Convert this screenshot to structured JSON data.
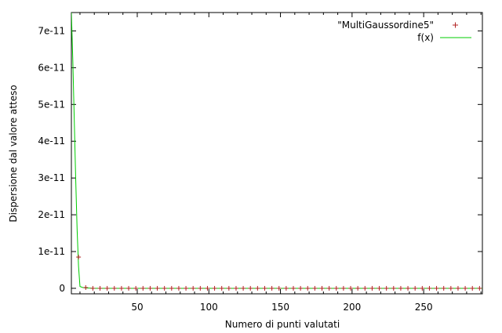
{
  "chart_data": {
    "type": "scatter",
    "title": "",
    "xlabel": "Numero di punti valutati",
    "ylabel": "Dispersione dal valore atteso",
    "xlim": [
      4,
      291
    ],
    "ylim": [
      -1.5e-12,
      7.5e-11
    ],
    "xticks": [
      50,
      100,
      150,
      200,
      250
    ],
    "yticks": [
      0,
      1e-11,
      2e-11,
      3e-11,
      4e-11,
      5e-11,
      6e-11,
      7e-11
    ],
    "ytick_labels": [
      "0",
      "1e-11",
      "2e-11",
      "3e-11",
      "4e-11",
      "5e-11",
      "6e-11",
      "7e-11"
    ],
    "xtick_labels": [
      "50",
      "100",
      "150",
      "200",
      "250"
    ],
    "grid": false,
    "legend_position": "top-right",
    "series": [
      {
        "name": "\"MultiGaussordine5\"",
        "kind": "points",
        "marker": "plus",
        "color": "#b22222",
        "x": [
          9,
          14,
          19,
          24,
          29,
          34,
          39,
          44,
          49,
          54,
          59,
          64,
          69,
          74,
          79,
          84,
          89,
          94,
          99,
          104,
          109,
          114,
          119,
          124,
          129,
          134,
          139,
          144,
          149,
          154,
          159,
          164,
          169,
          174,
          179,
          184,
          189,
          194,
          199,
          204,
          209,
          214,
          219,
          224,
          229,
          234,
          239,
          244,
          249,
          254,
          259,
          264,
          269,
          274,
          279,
          284,
          289
        ],
        "y": [
          8.5e-12,
          2e-13,
          0,
          0,
          0,
          0,
          0,
          0,
          0,
          0,
          0,
          0,
          0,
          0,
          0,
          0,
          0,
          0,
          0,
          0,
          0,
          0,
          0,
          0,
          0,
          0,
          0,
          0,
          0,
          0,
          0,
          0,
          0,
          0,
          0,
          0,
          0,
          0,
          0,
          0,
          0,
          0,
          0,
          0,
          0,
          0,
          0,
          0,
          0,
          0,
          0,
          0,
          0,
          0,
          0,
          0,
          0
        ]
      },
      {
        "name": "f(x)",
        "kind": "line",
        "color": "#00cc00",
        "x": [
          4,
          5,
          6,
          7,
          8,
          9,
          10,
          12,
          14,
          20,
          50,
          100,
          150,
          200,
          250,
          291
        ],
        "y": [
          7.5e-11,
          6.2e-11,
          4.6e-11,
          3e-11,
          1.6e-11,
          6e-12,
          5e-13,
          2e-13,
          1e-13,
          0,
          0,
          0,
          0,
          0,
          0,
          0
        ]
      }
    ]
  }
}
